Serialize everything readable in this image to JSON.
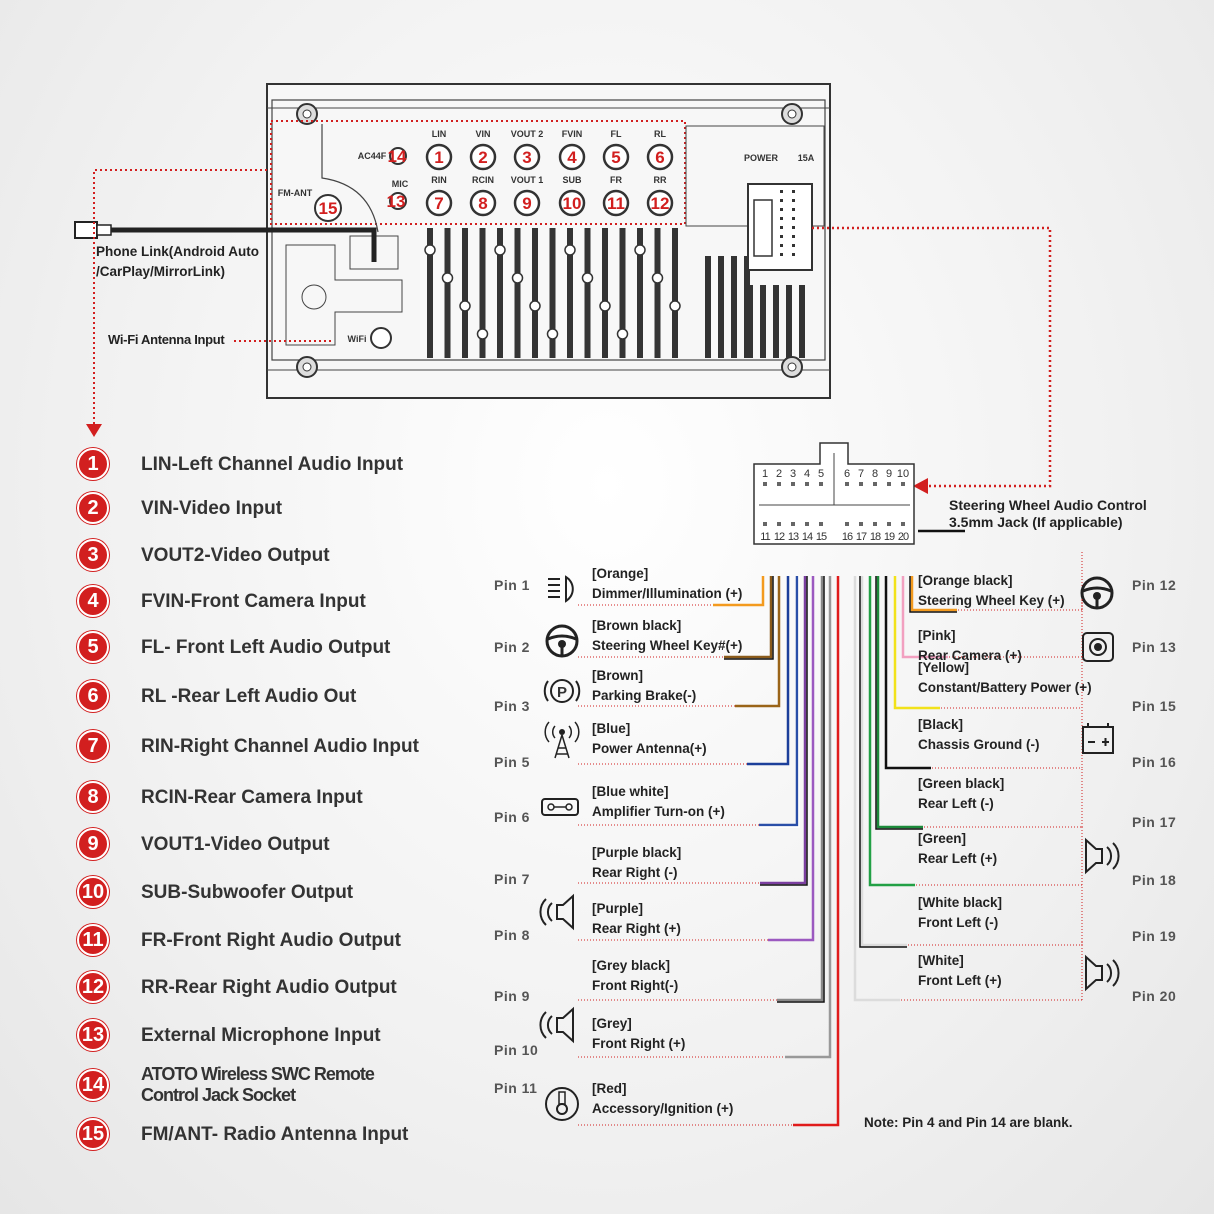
{
  "unit_panel": {
    "ports_top": [
      {
        "num": "1",
        "label": "LIN"
      },
      {
        "num": "2",
        "label": "VIN"
      },
      {
        "num": "3",
        "label": "VOUT 2"
      },
      {
        "num": "4",
        "label": "FVIN"
      },
      {
        "num": "5",
        "label": "FL"
      },
      {
        "num": "6",
        "label": "RL"
      }
    ],
    "ports_bottom": [
      {
        "num": "7",
        "label": "RIN"
      },
      {
        "num": "8",
        "label": "RCIN"
      },
      {
        "num": "9",
        "label": "VOUT 1"
      },
      {
        "num": "10",
        "label": "SUB"
      },
      {
        "num": "11",
        "label": "FR"
      },
      {
        "num": "12",
        "label": "RR"
      }
    ],
    "ac44f_label": "AC44F",
    "ac44f_num": "14",
    "mic_label": "MIC",
    "mic_num": "13",
    "fm_label": "FM-ANT",
    "fm_num": "15",
    "wifi_label": "WiFi",
    "power_label": "POWER",
    "fuse_label": "15A"
  },
  "callouts": {
    "phone_link": "Phone Link(Android Auto",
    "phone_link_2": "/CarPlay/MirrorLink)",
    "wifi_antenna": "Wi-Fi Antenna Input",
    "swc_jack_1": "Steering Wheel Audio Control",
    "swc_jack_2": "3.5mm Jack (If applicable)",
    "note": "Note: Pin 4 and Pin 14 are blank."
  },
  "connector": {
    "top_pins": [
      "1",
      "2",
      "3",
      "4",
      "5",
      "6",
      "7",
      "8",
      "9",
      "10"
    ],
    "bottom_pins": [
      "11",
      "12",
      "13",
      "14",
      "15",
      "16",
      "17",
      "18",
      "19",
      "20"
    ]
  },
  "legend": [
    {
      "num": "1",
      "text": "LIN-Left Channel Audio Input"
    },
    {
      "num": "2",
      "text": "VIN-Video Input"
    },
    {
      "num": "3",
      "text": "VOUT2-Video Output"
    },
    {
      "num": "4",
      "text": "FVIN-Front Camera Input"
    },
    {
      "num": "5",
      "text": "FL- Front Left Audio Output"
    },
    {
      "num": "6",
      "text": "RL -Rear Left Audio Out"
    },
    {
      "num": "7",
      "text": "RIN-Right Channel Audio Input"
    },
    {
      "num": "8",
      "text": "RCIN-Rear Camera Input"
    },
    {
      "num": "9",
      "text": "VOUT1-Video Output"
    },
    {
      "num": "10",
      "text": "SUB-Subwoofer Output"
    },
    {
      "num": "11",
      "text": "FR-Front Right Audio Output"
    },
    {
      "num": "12",
      "text": "RR-Rear Right Audio Output"
    },
    {
      "num": "13",
      "text": "External Microphone Input"
    },
    {
      "num": "14",
      "text": "ATOTO Wireless SWC Remote\nControl Jack Socket"
    },
    {
      "num": "15",
      "text": "FM/ANT- Radio Antenna Input"
    }
  ],
  "pins_left": [
    {
      "pin": "Pin 1",
      "color_name": "[Orange]",
      "function": "Dimmer/Illumination (+)",
      "wire": "#f39a1e",
      "stripe": null,
      "icon": "illumination-icon"
    },
    {
      "pin": "Pin 2",
      "color_name": "[Brown black]",
      "function": "Steering Wheel Key#(+)",
      "wire": "#8a5a1a",
      "stripe": "#111111",
      "icon": "steering-wheel-icon"
    },
    {
      "pin": "Pin 3",
      "color_name": "[Brown]",
      "function": "Parking Brake(-)",
      "wire": "#9a6418",
      "stripe": null,
      "icon": "parking-brake-icon"
    },
    {
      "pin": "Pin 5",
      "color_name": "[Blue]",
      "function": "Power Antenna(+)",
      "wire": "#1c3f9a",
      "stripe": null,
      "icon": "antenna-icon"
    },
    {
      "pin": "Pin 6",
      "color_name": "[Blue white]",
      "function": "Amplifier Turn-on (+)",
      "wire": "#2a4fa8",
      "stripe": "#ffffff",
      "icon": "amplifier-icon"
    },
    {
      "pin": "Pin 7",
      "color_name": "[Purple black]",
      "function": "Rear Right (-)",
      "wire": "#7b3fa0",
      "stripe": "#111111",
      "icon": null
    },
    {
      "pin": "Pin 8",
      "color_name": "[Purple]",
      "function": "Rear Right (+)",
      "wire": "#9b59c0",
      "stripe": null,
      "icon": "speaker-icon"
    },
    {
      "pin": "Pin 9",
      "color_name": "[Grey black]",
      "function": "Front Right(-)",
      "wire": "#888888",
      "stripe": "#111111",
      "icon": null
    },
    {
      "pin": "Pin 10",
      "color_name": "[Grey]",
      "function": "Front Right (+)",
      "wire": "#999999",
      "stripe": null,
      "icon": "speaker-icon"
    },
    {
      "pin": "Pin 11",
      "color_name": "[Red]",
      "function": "Accessory/Ignition (+)",
      "wire": "#e01b1b",
      "stripe": null,
      "icon": "ignition-icon"
    }
  ],
  "pins_right": [
    {
      "pin": "Pin 12",
      "color_name": "[Orange black]",
      "function": "Steering Wheel Key (+)",
      "wire": "#f39a1e",
      "stripe": "#111111",
      "icon": "steering-wheel-icon"
    },
    {
      "pin": "Pin 13",
      "color_name": "[Pink]",
      "function": "Rear Camera (+)",
      "wire": "#f2a0c0",
      "stripe": null,
      "icon": "camera-icon"
    },
    {
      "pin": "Pin 15",
      "color_name": "[Yellow]",
      "function": "Constant/Battery Power (+)",
      "wire": "#f2e21a",
      "stripe": null,
      "icon": null
    },
    {
      "pin": "Pin 16",
      "color_name": "[Black]",
      "function": "Chassis Ground (-)",
      "wire": "#111111",
      "stripe": null,
      "icon": "battery-icon"
    },
    {
      "pin": "Pin 17",
      "color_name": "[Green black]",
      "function": "Rear Left (-)",
      "wire": "#1c8a3a",
      "stripe": "#111111",
      "icon": null
    },
    {
      "pin": "Pin 18",
      "color_name": "[Green]",
      "function": "Rear Left (+)",
      "wire": "#22a045",
      "stripe": null,
      "icon": "speaker-icon"
    },
    {
      "pin": "Pin 19",
      "color_name": "[White black]",
      "function": "Front Left (-)",
      "wire": "#f4f4f4",
      "stripe": "#111111",
      "icon": null
    },
    {
      "pin": "Pin 20",
      "color_name": "[White]",
      "function": "Front Left (+)",
      "wire": "#f4f4f4",
      "stripe": null,
      "icon": "speaker-icon"
    }
  ],
  "colors": {
    "accent_red": "#d21f1f",
    "dotted_line": "#d21f1f"
  }
}
